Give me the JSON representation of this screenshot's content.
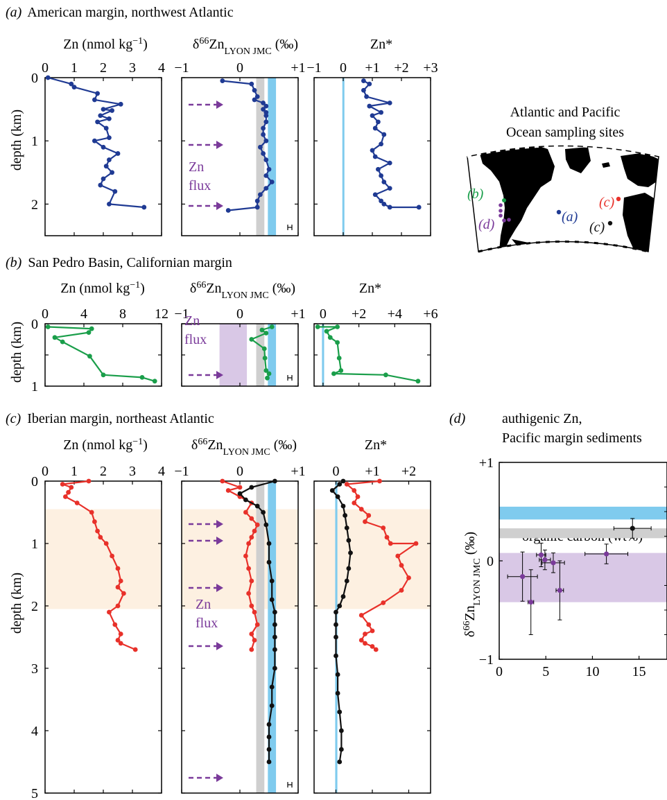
{
  "colors": {
    "blue_data": "#1f3a93",
    "green_data": "#1a9e4a",
    "red_data": "#e8312a",
    "black_data": "#111111",
    "purple": "#7a3a9a",
    "sky_band": "#7fcbee",
    "grey_band": "#cfcfcf",
    "lavender_band": "#d9c8e6",
    "peach_band": "#fdf0e1"
  },
  "map": {
    "title_line1": "Atlantic and Pacific",
    "title_line2": "Ocean sampling sites",
    "labels": [
      {
        "text": "(b)",
        "color": "#1a9e4a"
      },
      {
        "text": "(d)",
        "color": "#7a3a9a"
      },
      {
        "text": "(a)",
        "color": "#1f3a93"
      },
      {
        "text": "(c)",
        "color": "#e8312a"
      },
      {
        "text": "(c)",
        "color": "#111111"
      }
    ]
  },
  "annotations": {
    "zn": "Zn",
    "flux": "flux"
  },
  "chart_data": [
    {
      "id": "a",
      "type": "line",
      "panel_label": "(a)",
      "title": "American margin, northwest Atlantic",
      "ylabel": "depth (km)",
      "ylim": [
        0,
        2.5
      ],
      "yticks": [
        0,
        1,
        2
      ],
      "ytick_labels": [
        "0",
        "1",
        "2"
      ],
      "subplots": [
        {
          "xlabel": "Zn (nmol kg⁻¹)",
          "xlim": [
            0,
            4
          ],
          "xticks": [
            0,
            1,
            2,
            3,
            4
          ],
          "xtick_labels": [
            "0",
            "1",
            "2",
            "3",
            "4"
          ],
          "series": [
            {
              "color": "#1f3a93",
              "x": [
                0.1,
                0.9,
                1.0,
                1.8,
                1.7,
                2.6,
                2.0,
                2.3,
                1.9,
                2.2,
                1.8,
                2.1,
                2.2,
                1.7,
                2.0,
                2.5,
                2.2,
                2.1,
                2.3,
                2.0,
                1.9,
                2.4,
                2.2,
                3.4
              ],
              "y": [
                0.0,
                0.1,
                0.15,
                0.25,
                0.35,
                0.42,
                0.5,
                0.52,
                0.6,
                0.65,
                0.7,
                0.8,
                0.95,
                1.0,
                1.1,
                1.2,
                1.3,
                1.4,
                1.5,
                1.6,
                1.7,
                1.8,
                2.0,
                2.05
              ]
            }
          ]
        },
        {
          "xlabel": "δ⁶⁶Zn LYON JMC (‰)",
          "xlim": [
            -1,
            1
          ],
          "xticks": [
            -1,
            0,
            1
          ],
          "xtick_labels": [
            "−1",
            "0",
            "+1"
          ],
          "bands": [
            {
              "range": [
                0.28,
                0.42
              ],
              "color": "#cfcfcf"
            },
            {
              "range": [
                0.48,
                0.62
              ],
              "color": "#7fcbee"
            }
          ],
          "series": [
            {
              "color": "#1f3a93",
              "x": [
                -0.3,
                0.2,
                0.25,
                0.3,
                0.25,
                0.4,
                0.45,
                0.4,
                0.45,
                0.45,
                0.45,
                0.4,
                0.4,
                0.45,
                0.35,
                0.4,
                0.45,
                0.5,
                0.45,
                0.55,
                0.45,
                0.35,
                0.3,
                0.3,
                -0.2
              ],
              "y": [
                0.05,
                0.1,
                0.2,
                0.3,
                0.35,
                0.4,
                0.45,
                0.5,
                0.55,
                0.6,
                0.7,
                0.8,
                0.9,
                1.0,
                1.1,
                1.2,
                1.3,
                1.45,
                1.55,
                1.65,
                1.75,
                1.85,
                1.95,
                2.05,
                2.1
              ]
            }
          ],
          "error_bar": "±"
        },
        {
          "xlabel": "Zn*",
          "xlim": [
            -1,
            3
          ],
          "xticks": [
            -1,
            0,
            1,
            2,
            3
          ],
          "xtick_labels": [
            "−1",
            "0",
            "+1",
            "+2",
            "+3"
          ],
          "bands": [
            {
              "range": [
                -0.03,
                0.03
              ],
              "color": "#7fcbee"
            }
          ],
          "series": [
            {
              "color": "#1f3a93",
              "x": [
                0.7,
                0.9,
                0.7,
                0.8,
                1.6,
                0.9,
                1.3,
                1.0,
                1.2,
                1.1,
                1.4,
                1.3,
                1.0,
                1.1,
                1.6,
                1.2,
                1.3,
                1.4,
                1.6,
                1.1,
                1.3,
                1.4,
                1.6,
                2.6
              ],
              "y": [
                0.05,
                0.1,
                0.2,
                0.3,
                0.4,
                0.45,
                0.55,
                0.6,
                0.7,
                0.8,
                0.9,
                1.05,
                1.15,
                1.25,
                1.35,
                1.45,
                1.55,
                1.65,
                1.75,
                1.85,
                1.95,
                2.0,
                2.05,
                2.05
              ]
            }
          ]
        }
      ]
    },
    {
      "id": "b",
      "type": "line",
      "panel_label": "(b)",
      "title": "San Pedro Basin, Californian margin",
      "ylabel": "depth (km)",
      "ylim": [
        0,
        1
      ],
      "yticks": [
        0,
        0.5,
        1
      ],
      "ytick_labels": [
        "0",
        "",
        "1"
      ],
      "subplots": [
        {
          "xlabel": "Zn (nmol kg⁻¹)",
          "xlim": [
            0,
            12
          ],
          "xticks": [
            0,
            4,
            8,
            12
          ],
          "xtick_labels": [
            "0",
            "4",
            "8",
            "12"
          ],
          "series": [
            {
              "color": "#1a9e4a",
              "x": [
                0.3,
                4.8,
                4.5,
                1.0,
                1.8,
                4.6,
                6.0,
                10.0,
                11.3
              ],
              "y": [
                0.05,
                0.08,
                0.14,
                0.22,
                0.29,
                0.52,
                0.82,
                0.86,
                0.92
              ]
            }
          ]
        },
        {
          "xlabel": "δ⁶⁶Zn LYON JMC (‰)",
          "xlim": [
            -1,
            1
          ],
          "xticks": [
            -1,
            0,
            1
          ],
          "xtick_labels": [
            "−1",
            "0",
            "+1"
          ],
          "bands": [
            {
              "range": [
                -0.35,
                0.12
              ],
              "color": "#d9c8e6"
            },
            {
              "range": [
                0.28,
                0.42
              ],
              "color": "#cfcfcf"
            },
            {
              "range": [
                0.48,
                0.62
              ],
              "color": "#7fcbee"
            }
          ],
          "series": [
            {
              "color": "#1a9e4a",
              "x": [
                0.55,
                0.38,
                0.45,
                0.2,
                0.42,
                0.43,
                0.45,
                0.5,
                0.47
              ],
              "y": [
                0.05,
                0.1,
                0.15,
                0.25,
                0.4,
                0.55,
                0.75,
                0.8,
                0.87
              ]
            }
          ],
          "error_bar": "±"
        },
        {
          "xlabel": "Zn*",
          "xlim": [
            -0.5,
            6
          ],
          "xticks": [
            0,
            2,
            4,
            6
          ],
          "xtick_labels": [
            "0",
            "+2",
            "+4",
            "+6"
          ],
          "bands": [
            {
              "range": [
                -0.06,
                0.06
              ],
              "color": "#7fcbee"
            }
          ],
          "series": [
            {
              "color": "#1a9e4a",
              "x": [
                -0.3,
                0.8,
                0.2,
                0.4,
                0.8,
                0.9,
                1.0,
                0.6,
                3.5,
                5.3
              ],
              "y": [
                0.05,
                0.05,
                0.12,
                0.22,
                0.3,
                0.55,
                0.75,
                0.8,
                0.82,
                0.92
              ]
            }
          ]
        }
      ]
    },
    {
      "id": "c",
      "type": "line",
      "panel_label": "(c)",
      "title": "Iberian margin, northeast Atlantic",
      "ylabel": "depth (km)",
      "ylim": [
        0,
        5
      ],
      "yticks": [
        0,
        1,
        2,
        3,
        4,
        5
      ],
      "ytick_labels": [
        "0",
        "1",
        "2",
        "3",
        "4",
        "5"
      ],
      "highlight_depth": [
        0.45,
        2.05
      ],
      "subplots": [
        {
          "xlabel": "Zn (nmol kg⁻¹)",
          "xlim": [
            0,
            4
          ],
          "xticks": [
            0,
            1,
            2,
            3,
            4
          ],
          "xtick_labels": [
            "0",
            "1",
            "2",
            "3",
            "4"
          ],
          "series": [
            {
              "color": "#e8312a",
              "x": [
                1.5,
                0.6,
                0.9,
                0.8,
                0.7,
                1.1,
                1.6,
                1.7,
                1.8,
                1.9,
                2.1,
                2.3,
                2.5,
                2.6,
                2.5,
                2.7,
                2.5,
                2.2,
                2.4,
                2.6,
                2.5,
                2.6,
                3.1
              ],
              "y": [
                0.0,
                0.05,
                0.1,
                0.18,
                0.25,
                0.35,
                0.5,
                0.65,
                0.8,
                0.9,
                1.0,
                1.2,
                1.4,
                1.6,
                1.7,
                1.8,
                2.0,
                2.1,
                2.3,
                2.45,
                2.55,
                2.6,
                2.7
              ]
            }
          ]
        },
        {
          "xlabel": "δ⁶⁶Zn LYON JMC (‰)",
          "xlim": [
            -1,
            1
          ],
          "xticks": [
            -1,
            0,
            1
          ],
          "xtick_labels": [
            "−1",
            "0",
            "+1"
          ],
          "bands": [
            {
              "range": [
                0.28,
                0.42
              ],
              "color": "#cfcfcf"
            },
            {
              "range": [
                0.48,
                0.62
              ],
              "color": "#7fcbee"
            }
          ],
          "series": [
            {
              "color": "#e8312a",
              "x": [
                -0.3,
                0.0,
                -0.2,
                0.0,
                0.2,
                0.1,
                0.2,
                0.3,
                0.25,
                0.2,
                0.15,
                0.1,
                0.15,
                0.2,
                0.15,
                0.2,
                0.25,
                0.3,
                0.2,
                0.25,
                0.2
              ],
              "y": [
                0.0,
                0.1,
                0.15,
                0.25,
                0.35,
                0.5,
                0.6,
                0.7,
                0.8,
                0.9,
                1.0,
                1.2,
                1.4,
                1.6,
                1.8,
                2.0,
                2.1,
                2.3,
                2.45,
                2.55,
                2.7
              ]
            },
            {
              "color": "#111111",
              "x": [
                0.6,
                0.2,
                0.0,
                0.1,
                0.3,
                0.4,
                0.45,
                0.5,
                0.5,
                0.55,
                0.55,
                0.6,
                0.6,
                0.6,
                0.6,
                0.6,
                0.55,
                0.55,
                0.5,
                0.5,
                0.5,
                0.5
              ],
              "y": [
                0.0,
                0.1,
                0.2,
                0.3,
                0.4,
                0.5,
                0.7,
                1.0,
                1.3,
                1.6,
                1.9,
                2.1,
                2.3,
                2.5,
                2.7,
                3.0,
                3.3,
                3.6,
                3.9,
                4.1,
                4.3,
                4.5
              ]
            }
          ],
          "error_bar": "±"
        },
        {
          "xlabel": "Zn*",
          "xlim": [
            -0.6,
            2.6
          ],
          "xticks": [
            0,
            1,
            2
          ],
          "xtick_labels": [
            "0",
            "+1",
            "+2"
          ],
          "bands": [
            {
              "range": [
                -0.02,
                0.04
              ],
              "color": "#7fcbee"
            }
          ],
          "series": [
            {
              "color": "#e8312a",
              "x": [
                1.2,
                0.3,
                0.5,
                0.6,
                0.5,
                0.7,
                0.9,
                0.8,
                1.3,
                1.4,
                1.5,
                2.2,
                1.7,
                1.8,
                2.0,
                1.8,
                1.3,
                0.7,
                0.9,
                1.0,
                0.8,
                0.7,
                0.8,
                1.0,
                1.1
              ],
              "y": [
                0.0,
                0.05,
                0.15,
                0.25,
                0.35,
                0.45,
                0.55,
                0.65,
                0.75,
                0.9,
                1.0,
                1.0,
                1.2,
                1.35,
                1.55,
                1.75,
                1.95,
                2.15,
                2.3,
                2.4,
                2.45,
                2.55,
                2.6,
                2.65,
                2.7
              ]
            },
            {
              "color": "#111111",
              "x": [
                0.2,
                0.1,
                -0.1,
                0.05,
                0.2,
                0.25,
                0.3,
                0.35,
                0.4,
                0.35,
                0.3,
                0.2,
                0.1,
                0.0,
                0.0,
                0.0,
                0.0,
                0.05,
                0.05,
                0.1,
                0.15,
                0.15,
                0.1
              ],
              "y": [
                0.0,
                0.05,
                0.15,
                0.25,
                0.4,
                0.55,
                0.75,
                0.95,
                1.15,
                1.4,
                1.6,
                1.85,
                2.0,
                2.1,
                2.3,
                2.5,
                2.8,
                3.1,
                3.4,
                3.7,
                4.0,
                4.3,
                4.5
              ]
            }
          ]
        }
      ]
    },
    {
      "id": "d",
      "type": "scatter",
      "panel_label": "(d)",
      "title": "authigenic Zn,",
      "subtitle": "Pacific margin sediments",
      "xlabel": "organic carbon (wt%)",
      "ylabel": "δ⁶⁶Zn LYON JMC (‰)",
      "xlim": [
        0,
        18
      ],
      "ylim": [
        -1,
        1
      ],
      "xticks": [
        0,
        5,
        10,
        15
      ],
      "xtick_labels": [
        "0",
        "5",
        "10",
        "15"
      ],
      "yticks": [
        -1,
        0,
        1
      ],
      "ytick_labels": [
        "−1",
        "0",
        "+1"
      ],
      "bands": [
        {
          "range": [
            0.42,
            0.55
          ],
          "color": "#7fcbee"
        },
        {
          "range": [
            0.23,
            0.33
          ],
          "color": "#cfcfcf"
        },
        {
          "range": [
            -0.42,
            0.08
          ],
          "color": "#d9c8e6"
        }
      ],
      "points": [
        {
          "x": 14.3,
          "y": 0.33,
          "xerr": 2.0,
          "yerr": 0.1
        },
        {
          "x": 11.5,
          "y": 0.07,
          "xerr": 2.3,
          "yerr": 0.1
        },
        {
          "x": 4.5,
          "y": 0.06,
          "xerr": 0.5,
          "yerr": 0.12
        },
        {
          "x": 4.9,
          "y": 0.01,
          "xerr": 0.6,
          "yerr": 0.1
        },
        {
          "x": 5.8,
          "y": -0.02,
          "xerr": 1.2,
          "yerr": 0.1
        },
        {
          "x": 2.5,
          "y": -0.16,
          "xerr": 1.6,
          "yerr": 0.25
        },
        {
          "x": 6.5,
          "y": -0.3,
          "xerr": 0.4,
          "yerr": 0.3
        },
        {
          "x": 3.4,
          "y": -0.42,
          "xerr": 0.3,
          "yerr": 0.33
        }
      ]
    }
  ]
}
